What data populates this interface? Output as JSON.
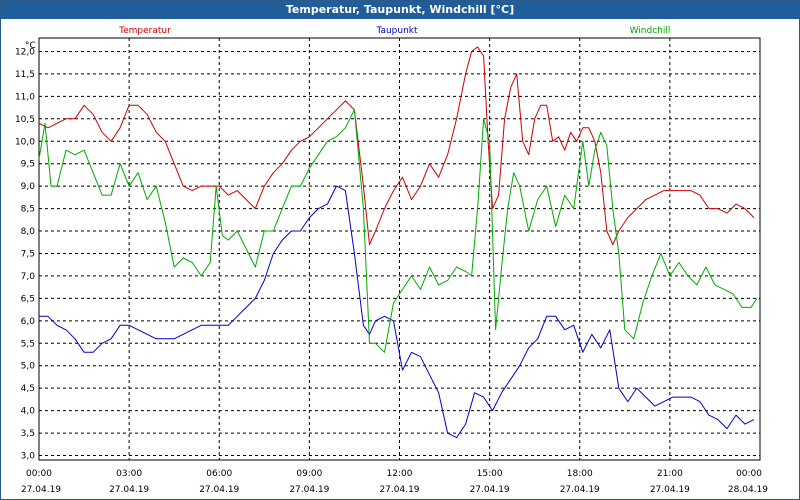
{
  "window": {
    "title": "Temperatur, Taupunkt, Windchill [°C]"
  },
  "chart_data": {
    "type": "line",
    "ylabel": "°C",
    "ylim": [
      2.9,
      12.3
    ],
    "yticks": [
      "3,0",
      "3,5",
      "4,0",
      "4,5",
      "5,0",
      "5,5",
      "6,0",
      "6,5",
      "7,0",
      "7,5",
      "8,0",
      "8,5",
      "9,0",
      "9,5",
      "10,0",
      "10,5",
      "11,0",
      "11,5",
      "12,0"
    ],
    "xlim": [
      0,
      24
    ],
    "xticks": [
      {
        "t": "00:00",
        "d": "27.04.19"
      },
      {
        "t": "03:00",
        "d": "27.04.19"
      },
      {
        "t": "06:00",
        "d": "27.04.19"
      },
      {
        "t": "09:00",
        "d": "27.04.19"
      },
      {
        "t": "12:00",
        "d": "27.04.19"
      },
      {
        "t": "15:00",
        "d": "27.04.19"
      },
      {
        "t": "18:00",
        "d": "27.04.19"
      },
      {
        "t": "21:00",
        "d": "27.04.19"
      },
      {
        "t": "00:00",
        "d": "28.04.19"
      }
    ],
    "grid": true,
    "series": [
      {
        "name": "Temperatur",
        "color": "#cc0000",
        "x": [
          0,
          0.3,
          0.6,
          0.9,
          1.2,
          1.5,
          1.8,
          2.1,
          2.4,
          2.7,
          3.0,
          3.3,
          3.6,
          3.9,
          4.2,
          4.5,
          4.8,
          5.1,
          5.4,
          5.7,
          6.0,
          6.3,
          6.6,
          6.9,
          7.2,
          7.5,
          7.8,
          8.1,
          8.4,
          8.7,
          9.0,
          9.3,
          9.6,
          9.9,
          10.2,
          10.5,
          10.8,
          11.0,
          11.2,
          11.5,
          11.8,
          12.1,
          12.4,
          12.7,
          13.0,
          13.3,
          13.6,
          13.9,
          14.2,
          14.4,
          14.6,
          14.8,
          14.95,
          15.1,
          15.3,
          15.5,
          15.7,
          15.9,
          16.1,
          16.3,
          16.5,
          16.7,
          16.9,
          17.1,
          17.3,
          17.5,
          17.7,
          17.9,
          18.1,
          18.3,
          18.5,
          18.7,
          18.9,
          19.1,
          19.3,
          19.6,
          19.9,
          20.2,
          20.5,
          20.8,
          21.1,
          21.4,
          21.7,
          22.0,
          22.3,
          22.6,
          22.9,
          23.2,
          23.5,
          23.8
        ],
        "values": [
          10.4,
          10.3,
          10.4,
          10.5,
          10.5,
          10.8,
          10.6,
          10.2,
          10.0,
          10.3,
          10.8,
          10.8,
          10.6,
          10.2,
          10.0,
          9.5,
          9.0,
          8.9,
          9.0,
          9.0,
          9.0,
          8.8,
          8.9,
          8.7,
          8.5,
          9.0,
          9.3,
          9.5,
          9.8,
          10.0,
          10.1,
          10.3,
          10.5,
          10.7,
          10.9,
          10.7,
          9.0,
          7.7,
          8.0,
          8.5,
          8.9,
          9.2,
          8.7,
          9.0,
          9.5,
          9.2,
          9.7,
          10.5,
          11.5,
          12.0,
          12.1,
          11.9,
          10.0,
          8.5,
          8.8,
          10.5,
          11.2,
          11.5,
          10.0,
          9.7,
          10.5,
          10.8,
          10.8,
          10.0,
          10.1,
          9.8,
          10.2,
          10.0,
          10.3,
          10.3,
          10.0,
          9.3,
          8.0,
          7.7,
          8.0,
          8.3,
          8.5,
          8.7,
          8.8,
          8.9,
          8.9,
          8.9,
          8.9,
          8.8,
          8.5,
          8.5,
          8.4,
          8.6,
          8.5,
          8.3
        ]
      },
      {
        "name": "Taupunkt",
        "color": "#0000cc",
        "x": [
          0,
          0.3,
          0.6,
          0.9,
          1.2,
          1.5,
          1.8,
          2.1,
          2.4,
          2.7,
          3.0,
          3.3,
          3.6,
          3.9,
          4.2,
          4.5,
          4.8,
          5.1,
          5.4,
          5.7,
          6.0,
          6.3,
          6.6,
          6.9,
          7.2,
          7.5,
          7.8,
          8.1,
          8.4,
          8.7,
          9.0,
          9.3,
          9.6,
          9.9,
          10.2,
          10.5,
          10.8,
          11.0,
          11.2,
          11.5,
          11.8,
          12.1,
          12.4,
          12.7,
          13.0,
          13.3,
          13.6,
          13.9,
          14.2,
          14.5,
          14.8,
          15.1,
          15.4,
          15.7,
          16.0,
          16.3,
          16.6,
          16.9,
          17.2,
          17.5,
          17.8,
          18.1,
          18.4,
          18.7,
          19.0,
          19.3,
          19.6,
          19.9,
          20.2,
          20.5,
          20.8,
          21.1,
          21.4,
          21.7,
          22.0,
          22.3,
          22.6,
          22.9,
          23.2,
          23.5,
          23.8
        ],
        "values": [
          6.1,
          6.1,
          5.9,
          5.8,
          5.6,
          5.3,
          5.3,
          5.5,
          5.6,
          5.9,
          5.9,
          5.8,
          5.7,
          5.6,
          5.6,
          5.6,
          5.7,
          5.8,
          5.9,
          5.9,
          5.9,
          5.9,
          6.1,
          6.3,
          6.5,
          6.9,
          7.5,
          7.8,
          8.0,
          8.0,
          8.3,
          8.5,
          8.6,
          9.0,
          8.9,
          7.5,
          5.9,
          5.7,
          6.0,
          6.1,
          6.0,
          4.9,
          5.3,
          5.2,
          4.8,
          4.4,
          3.5,
          3.4,
          3.7,
          4.4,
          4.3,
          4.0,
          4.4,
          4.7,
          5.0,
          5.4,
          5.6,
          6.1,
          6.1,
          5.8,
          5.9,
          5.3,
          5.7,
          5.4,
          5.8,
          4.5,
          4.2,
          4.5,
          4.3,
          4.1,
          4.2,
          4.3,
          4.3,
          4.3,
          4.2,
          3.9,
          3.8,
          3.6,
          3.9,
          3.7,
          3.8
        ]
      },
      {
        "name": "Windchill",
        "color": "#00aa00",
        "x": [
          0,
          0.2,
          0.4,
          0.6,
          0.9,
          1.2,
          1.5,
          1.8,
          2.1,
          2.4,
          2.7,
          3.0,
          3.3,
          3.6,
          3.9,
          4.2,
          4.5,
          4.8,
          5.1,
          5.4,
          5.7,
          5.9,
          6.1,
          6.3,
          6.6,
          6.9,
          7.2,
          7.5,
          7.8,
          8.1,
          8.4,
          8.7,
          9.0,
          9.3,
          9.6,
          9.9,
          10.2,
          10.5,
          10.8,
          11.0,
          11.2,
          11.5,
          11.8,
          12.1,
          12.4,
          12.7,
          13.0,
          13.3,
          13.6,
          13.9,
          14.2,
          14.4,
          14.6,
          14.8,
          15.0,
          15.2,
          15.4,
          15.6,
          15.8,
          16.0,
          16.3,
          16.6,
          16.9,
          17.2,
          17.5,
          17.8,
          18.1,
          18.3,
          18.5,
          18.7,
          18.9,
          19.1,
          19.3,
          19.5,
          19.8,
          20.1,
          20.4,
          20.7,
          21.0,
          21.3,
          21.6,
          21.9,
          22.2,
          22.5,
          22.8,
          23.1,
          23.4,
          23.7,
          23.9
        ],
        "values": [
          9.6,
          10.4,
          9.0,
          9.0,
          9.8,
          9.7,
          9.8,
          9.3,
          8.8,
          8.8,
          9.5,
          9.0,
          9.3,
          8.7,
          9.0,
          8.2,
          7.2,
          7.4,
          7.3,
          7.0,
          7.3,
          9.0,
          7.9,
          7.8,
          8.0,
          7.6,
          7.2,
          8.0,
          8.0,
          8.5,
          9.0,
          9.0,
          9.4,
          9.7,
          10.0,
          10.1,
          10.3,
          10.7,
          8.5,
          5.5,
          5.5,
          5.3,
          6.4,
          6.7,
          7.0,
          6.7,
          7.2,
          6.8,
          6.9,
          7.2,
          7.1,
          7.0,
          8.5,
          10.5,
          10.0,
          5.8,
          7.2,
          8.5,
          9.3,
          9.0,
          8.0,
          8.7,
          9.0,
          8.1,
          8.8,
          8.5,
          10.0,
          9.0,
          9.8,
          10.2,
          9.9,
          8.5,
          7.5,
          5.8,
          5.6,
          6.4,
          7.0,
          7.5,
          7.0,
          7.3,
          7.0,
          6.8,
          7.2,
          6.8,
          6.7,
          6.6,
          6.3,
          6.3,
          6.5
        ]
      }
    ]
  }
}
